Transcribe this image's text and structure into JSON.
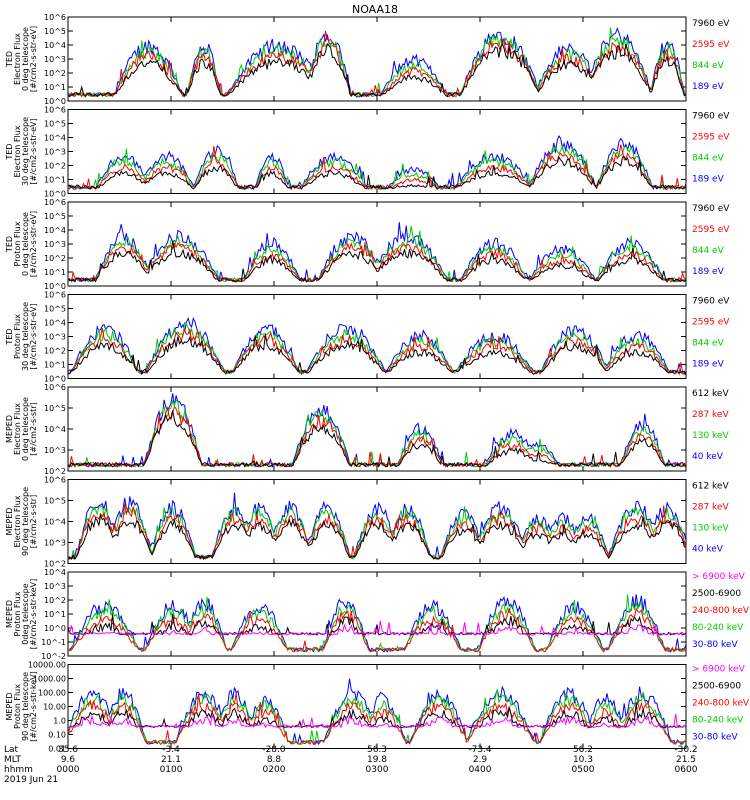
{
  "title": "NOAA18",
  "colors": {
    "blue": "#0000ff",
    "red": "#ff0000",
    "green": "#00cc00",
    "black": "#000000",
    "magenta": "#ff00ff"
  },
  "chart_data": [
    {
      "type": "line",
      "ylabel_lines": [
        "TED",
        "Electron Flux",
        "0 deg telescope",
        "[#/cm2-s-str-eV]"
      ],
      "ylog": true,
      "ylim": [
        1,
        1000000
      ],
      "yticks": [
        {
          "v": 1,
          "label": "10^0"
        },
        {
          "v": 10,
          "label": "10^1"
        },
        {
          "v": 100,
          "label": "10^2"
        },
        {
          "v": 1000,
          "label": "10^3"
        },
        {
          "v": 10000,
          "label": "10^4"
        },
        {
          "v": 100000,
          "label": "10^5"
        },
        {
          "v": 1000000,
          "label": "10^6"
        }
      ],
      "series": [
        {
          "name": "7960 eV",
          "color": "#000000"
        },
        {
          "name": "2595 eV",
          "color": "#ff0000"
        },
        {
          "name": "844 eV",
          "color": "#00cc00"
        },
        {
          "name": "189 eV",
          "color": "#0000ff"
        }
      ],
      "legend_order": [
        0,
        1,
        2,
        3
      ],
      "bursts": [
        [
          0.13,
          0.06,
          30000
        ],
        [
          0.22,
          0.03,
          30000
        ],
        [
          0.34,
          0.09,
          30000
        ],
        [
          0.42,
          0.04,
          300000
        ],
        [
          0.56,
          0.06,
          2000
        ],
        [
          0.7,
          0.07,
          300000
        ],
        [
          0.81,
          0.06,
          20000
        ],
        [
          0.89,
          0.06,
          200000
        ],
        [
          0.97,
          0.03,
          50000
        ]
      ]
    },
    {
      "type": "line",
      "ylabel_lines": [
        "TED",
        "Electron Flux",
        "30 deg telescope",
        "[#/cm2-s-str-eV]"
      ],
      "ylog": true,
      "ylim": [
        1,
        1000000
      ],
      "yticks": [
        {
          "v": 1,
          "label": "10^0"
        },
        {
          "v": 10,
          "label": "10^1"
        },
        {
          "v": 100,
          "label": "10^2"
        },
        {
          "v": 1000,
          "label": "10^3"
        },
        {
          "v": 10000,
          "label": "10^4"
        },
        {
          "v": 100000,
          "label": "10^5"
        },
        {
          "v": 1000000,
          "label": "10^6"
        }
      ],
      "series": [
        {
          "name": "7960 eV",
          "color": "#000000"
        },
        {
          "name": "2595 eV",
          "color": "#ff0000"
        },
        {
          "name": "844 eV",
          "color": "#00cc00"
        },
        {
          "name": "189 eV",
          "color": "#0000ff"
        }
      ],
      "legend_order": [
        0,
        1,
        2,
        3
      ],
      "bursts": [
        [
          0.09,
          0.05,
          1000
        ],
        [
          0.16,
          0.05,
          1000
        ],
        [
          0.24,
          0.04,
          3000
        ],
        [
          0.33,
          0.03,
          1000
        ],
        [
          0.43,
          0.06,
          1000
        ],
        [
          0.56,
          0.05,
          100
        ],
        [
          0.69,
          0.07,
          1000
        ],
        [
          0.8,
          0.06,
          10000
        ],
        [
          0.9,
          0.05,
          10000
        ]
      ]
    },
    {
      "type": "line",
      "ylabel_lines": [
        "TED",
        "Proton Flux",
        "0 deg telescope",
        "[#/cm2-s-str-eV]"
      ],
      "ylog": true,
      "ylim": [
        1,
        1000000
      ],
      "yticks": [
        {
          "v": 1,
          "label": "10^0"
        },
        {
          "v": 10,
          "label": "10^1"
        },
        {
          "v": 100,
          "label": "10^2"
        },
        {
          "v": 1000,
          "label": "10^3"
        },
        {
          "v": 10000,
          "label": "10^4"
        },
        {
          "v": 100000,
          "label": "10^5"
        },
        {
          "v": 1000000,
          "label": "10^6"
        }
      ],
      "series": [
        {
          "name": "7960 eV",
          "color": "#000000"
        },
        {
          "name": "2595 eV",
          "color": "#ff0000"
        },
        {
          "name": "844 eV",
          "color": "#00cc00"
        },
        {
          "name": "189 eV",
          "color": "#0000ff"
        }
      ],
      "legend_order": [
        0,
        1,
        2,
        3
      ],
      "bursts": [
        [
          0.09,
          0.05,
          10000
        ],
        [
          0.18,
          0.07,
          10000
        ],
        [
          0.33,
          0.05,
          3000
        ],
        [
          0.46,
          0.06,
          10000
        ],
        [
          0.55,
          0.07,
          10000
        ],
        [
          0.69,
          0.06,
          3000
        ],
        [
          0.8,
          0.06,
          1000
        ],
        [
          0.91,
          0.06,
          3000
        ]
      ]
    },
    {
      "type": "line",
      "ylabel_lines": [
        "TED",
        "Proton Flux",
        "30 deg telescope",
        "[#/cm2-s-str-eV]"
      ],
      "ylog": true,
      "ylim": [
        1,
        1000000
      ],
      "yticks": [
        {
          "v": 1,
          "label": "10^0"
        },
        {
          "v": 10,
          "label": "10^1"
        },
        {
          "v": 100,
          "label": "10^2"
        },
        {
          "v": 1000,
          "label": "10^3"
        },
        {
          "v": 10000,
          "label": "10^4"
        },
        {
          "v": 100000,
          "label": "10^5"
        },
        {
          "v": 1000000,
          "label": "10^6"
        }
      ],
      "series": [
        {
          "name": "7960 eV",
          "color": "#000000"
        },
        {
          "name": "2595 eV",
          "color": "#ff0000"
        },
        {
          "name": "844 eV",
          "color": "#00cc00"
        },
        {
          "name": "189 eV",
          "color": "#0000ff"
        }
      ],
      "legend_order": [
        0,
        1,
        2,
        3
      ],
      "bursts": [
        [
          0.06,
          0.06,
          10000
        ],
        [
          0.19,
          0.07,
          30000
        ],
        [
          0.32,
          0.06,
          10000
        ],
        [
          0.45,
          0.07,
          10000
        ],
        [
          0.57,
          0.06,
          3000
        ],
        [
          0.69,
          0.07,
          3000
        ],
        [
          0.82,
          0.06,
          10000
        ],
        [
          0.92,
          0.06,
          3000
        ]
      ]
    },
    {
      "type": "line",
      "ylabel_lines": [
        "MEPED",
        "Electron Flux",
        "0 deg telescope",
        "[#/cm2-s-str]"
      ],
      "ylog": true,
      "ylim": [
        100,
        1000000
      ],
      "yticks": [
        {
          "v": 100,
          "label": "10^2"
        },
        {
          "v": 1000,
          "label": "10^3"
        },
        {
          "v": 10000,
          "label": "10^4"
        },
        {
          "v": 100000,
          "label": "10^5"
        },
        {
          "v": 1000000,
          "label": "10^6"
        }
      ],
      "series": [
        {
          "name": "612 keV",
          "color": "#000000"
        },
        {
          "name": "287 keV",
          "color": "#ff0000"
        },
        {
          "name": "130 keV",
          "color": "#00cc00"
        },
        {
          "name": "40 keV",
          "color": "#0000ff"
        }
      ],
      "legend_order": [
        0,
        1,
        2,
        3
      ],
      "bursts": [
        [
          0.17,
          0.05,
          600000
        ],
        [
          0.41,
          0.05,
          200000
        ],
        [
          0.57,
          0.04,
          20000
        ],
        [
          0.72,
          0.05,
          10000
        ],
        [
          0.76,
          0.04,
          3000
        ],
        [
          0.93,
          0.04,
          30000
        ]
      ]
    },
    {
      "type": "line",
      "ylabel_lines": [
        "MEPED",
        "Electron Flux",
        "90 deg telescope",
        "[#/cm2-s-str]"
      ],
      "ylog": true,
      "ylim": [
        100,
        1000000
      ],
      "yticks": [
        {
          "v": 100,
          "label": "10^2"
        },
        {
          "v": 1000,
          "label": "10^3"
        },
        {
          "v": 10000,
          "label": "10^4"
        },
        {
          "v": 100000,
          "label": "10^5"
        },
        {
          "v": 1000000,
          "label": "10^6"
        }
      ],
      "series": [
        {
          "name": "612 keV",
          "color": "#000000"
        },
        {
          "name": "287 keV",
          "color": "#ff0000"
        },
        {
          "name": "130 keV",
          "color": "#00cc00"
        },
        {
          "name": "40 keV",
          "color": "#0000ff"
        }
      ],
      "legend_order": [
        0,
        1,
        2,
        3
      ],
      "bursts": [
        [
          0.05,
          0.04,
          200000
        ],
        [
          0.1,
          0.04,
          200000
        ],
        [
          0.17,
          0.04,
          100000
        ],
        [
          0.27,
          0.04,
          100000
        ],
        [
          0.31,
          0.04,
          100000
        ],
        [
          0.36,
          0.04,
          100000
        ],
        [
          0.42,
          0.04,
          100000
        ],
        [
          0.5,
          0.04,
          100000
        ],
        [
          0.55,
          0.04,
          100000
        ],
        [
          0.64,
          0.04,
          50000
        ],
        [
          0.7,
          0.05,
          100000
        ],
        [
          0.76,
          0.04,
          30000
        ],
        [
          0.8,
          0.04,
          30000
        ],
        [
          0.84,
          0.04,
          30000
        ],
        [
          0.92,
          0.05,
          100000
        ],
        [
          0.97,
          0.04,
          100000
        ]
      ]
    },
    {
      "type": "line",
      "ylabel_lines": [
        "MEPED",
        "Proton Flux",
        "0deg telescope",
        "[#/cm2-s-str-keV]"
      ],
      "ylog": true,
      "ylim": [
        0.01,
        10000
      ],
      "yticks": [
        {
          "v": 0.01,
          "label": "10^-2"
        },
        {
          "v": 0.1,
          "label": "10^-1"
        },
        {
          "v": 1,
          "label": "10^0"
        },
        {
          "v": 10,
          "label": "10^1"
        },
        {
          "v": 100,
          "label": "10^2"
        },
        {
          "v": 1000,
          "label": "10^3"
        },
        {
          "v": 10000,
          "label": "10^4"
        }
      ],
      "series": [
        {
          "name": "> 6900 keV",
          "color": "#ff00ff"
        },
        {
          "name": "2500-6900",
          "color": "#000000"
        },
        {
          "name": "240-800 keV",
          "color": "#ff0000"
        },
        {
          "name": "80-240 keV",
          "color": "#00cc00"
        },
        {
          "name": "30-80 keV",
          "color": "#0000ff"
        }
      ],
      "legend_order": [
        0,
        1,
        2,
        3,
        4
      ],
      "bursts": [
        [
          0.06,
          0.06,
          100
        ],
        [
          0.17,
          0.05,
          100
        ],
        [
          0.22,
          0.04,
          200
        ],
        [
          0.31,
          0.05,
          100
        ],
        [
          0.45,
          0.04,
          300
        ],
        [
          0.59,
          0.05,
          100
        ],
        [
          0.71,
          0.05,
          300
        ],
        [
          0.82,
          0.05,
          100
        ],
        [
          0.92,
          0.05,
          300
        ]
      ]
    },
    {
      "type": "line",
      "ylabel_lines": [
        "MEPED",
        "Proton Flux",
        "90 deg telescope",
        "[#/cm2-s-str-keV]"
      ],
      "ylog": true,
      "ylim": [
        0.01,
        10000
      ],
      "yticks": [
        {
          "v": 0.01,
          "label": "0.01"
        },
        {
          "v": 0.1,
          "label": "0.10"
        },
        {
          "v": 1,
          "label": "1.0"
        },
        {
          "v": 10,
          "label": "10.00"
        },
        {
          "v": 100,
          "label": "100.00"
        },
        {
          "v": 1000,
          "label": "1000.00"
        },
        {
          "v": 10000,
          "label": "10000.00"
        }
      ],
      "series": [
        {
          "name": "> 6900 keV",
          "color": "#ff00ff"
        },
        {
          "name": "2500-6900",
          "color": "#000000"
        },
        {
          "name": "240-800 keV",
          "color": "#ff0000"
        },
        {
          "name": "80-240 keV",
          "color": "#00cc00"
        },
        {
          "name": "30-80 keV",
          "color": "#0000ff"
        }
      ],
      "legend_order": [
        0,
        1,
        2,
        3,
        4
      ],
      "bursts": [
        [
          0.04,
          0.05,
          300
        ],
        [
          0.09,
          0.04,
          300
        ],
        [
          0.22,
          0.05,
          300
        ],
        [
          0.27,
          0.04,
          300
        ],
        [
          0.32,
          0.04,
          100
        ],
        [
          0.46,
          0.05,
          300
        ],
        [
          0.51,
          0.04,
          100
        ],
        [
          0.6,
          0.05,
          300
        ],
        [
          0.7,
          0.06,
          300
        ],
        [
          0.81,
          0.05,
          300
        ],
        [
          0.87,
          0.04,
          100
        ],
        [
          0.93,
          0.05,
          300
        ]
      ]
    }
  ],
  "xaxis": {
    "row_labels": [
      "Lat",
      "MLT",
      "hhmm",
      "2019 Jun 21"
    ],
    "ticks": [
      {
        "pos": 0,
        "lat": "35.6",
        "mlt": "9.6",
        "hhmm": "0000"
      },
      {
        "pos": 0.1667,
        "lat": "-3.4",
        "mlt": "21.1",
        "hhmm": "0100"
      },
      {
        "pos": 0.3333,
        "lat": "-28.0",
        "mlt": "8.8",
        "hhmm": "0200"
      },
      {
        "pos": 0.5,
        "lat": "56.3",
        "mlt": "19.8",
        "hhmm": "0300"
      },
      {
        "pos": 0.6667,
        "lat": "-73.4",
        "mlt": "2.9",
        "hhmm": "0400"
      },
      {
        "pos": 0.8333,
        "lat": "56.2",
        "mlt": "10.3",
        "hhmm": "0500"
      },
      {
        "pos": 1,
        "lat": "-30.2",
        "mlt": "21.5",
        "hhmm": "0600"
      }
    ]
  }
}
